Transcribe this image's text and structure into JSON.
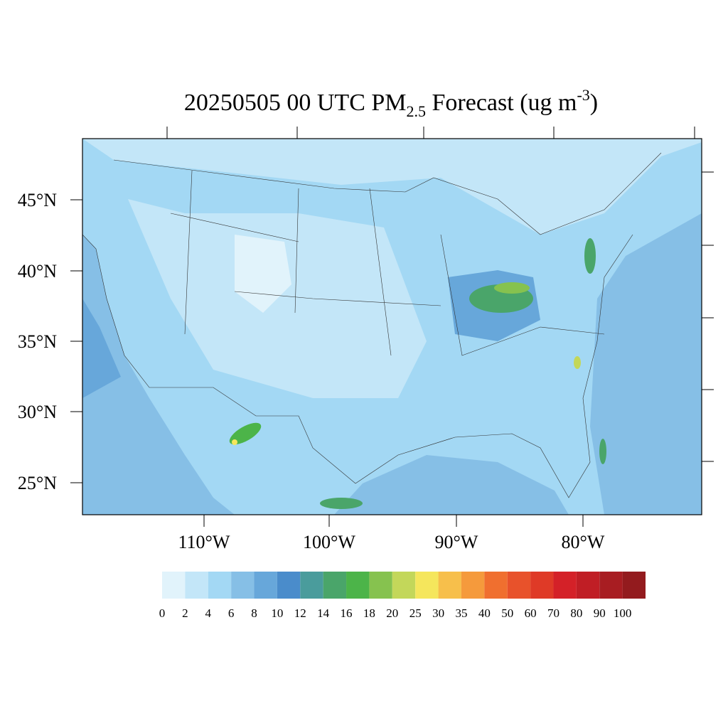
{
  "title": {
    "main": "20250505 00 UTC PM",
    "subscript": "2.5",
    "rest": " Forecast (ug m",
    "superscript": "-3",
    "close": ")"
  },
  "map": {
    "lat_labels": [
      "45°N",
      "40°N",
      "35°N",
      "30°N",
      "25°N"
    ],
    "lon_labels": [
      "110°W",
      "100°W",
      "90°W",
      "80°W"
    ]
  },
  "colorbar": {
    "levels": [
      0,
      2,
      4,
      6,
      8,
      10,
      12,
      14,
      16,
      18,
      20,
      25,
      30,
      35,
      40,
      50,
      60,
      70,
      80,
      90,
      100
    ],
    "colors": [
      "#e1f3fb",
      "#c3e6f8",
      "#a3d8f4",
      "#86bfe6",
      "#67a7da",
      "#4a8ccb",
      "#4a9c9c",
      "#4aa56a",
      "#4cb449",
      "#86c24f",
      "#c3d75a",
      "#f5e65c",
      "#f7bf4b",
      "#f59a3c",
      "#f06f2f",
      "#e8522b",
      "#df3a27",
      "#d42128",
      "#c01e25",
      "#a81d22",
      "#931b1e"
    ]
  }
}
